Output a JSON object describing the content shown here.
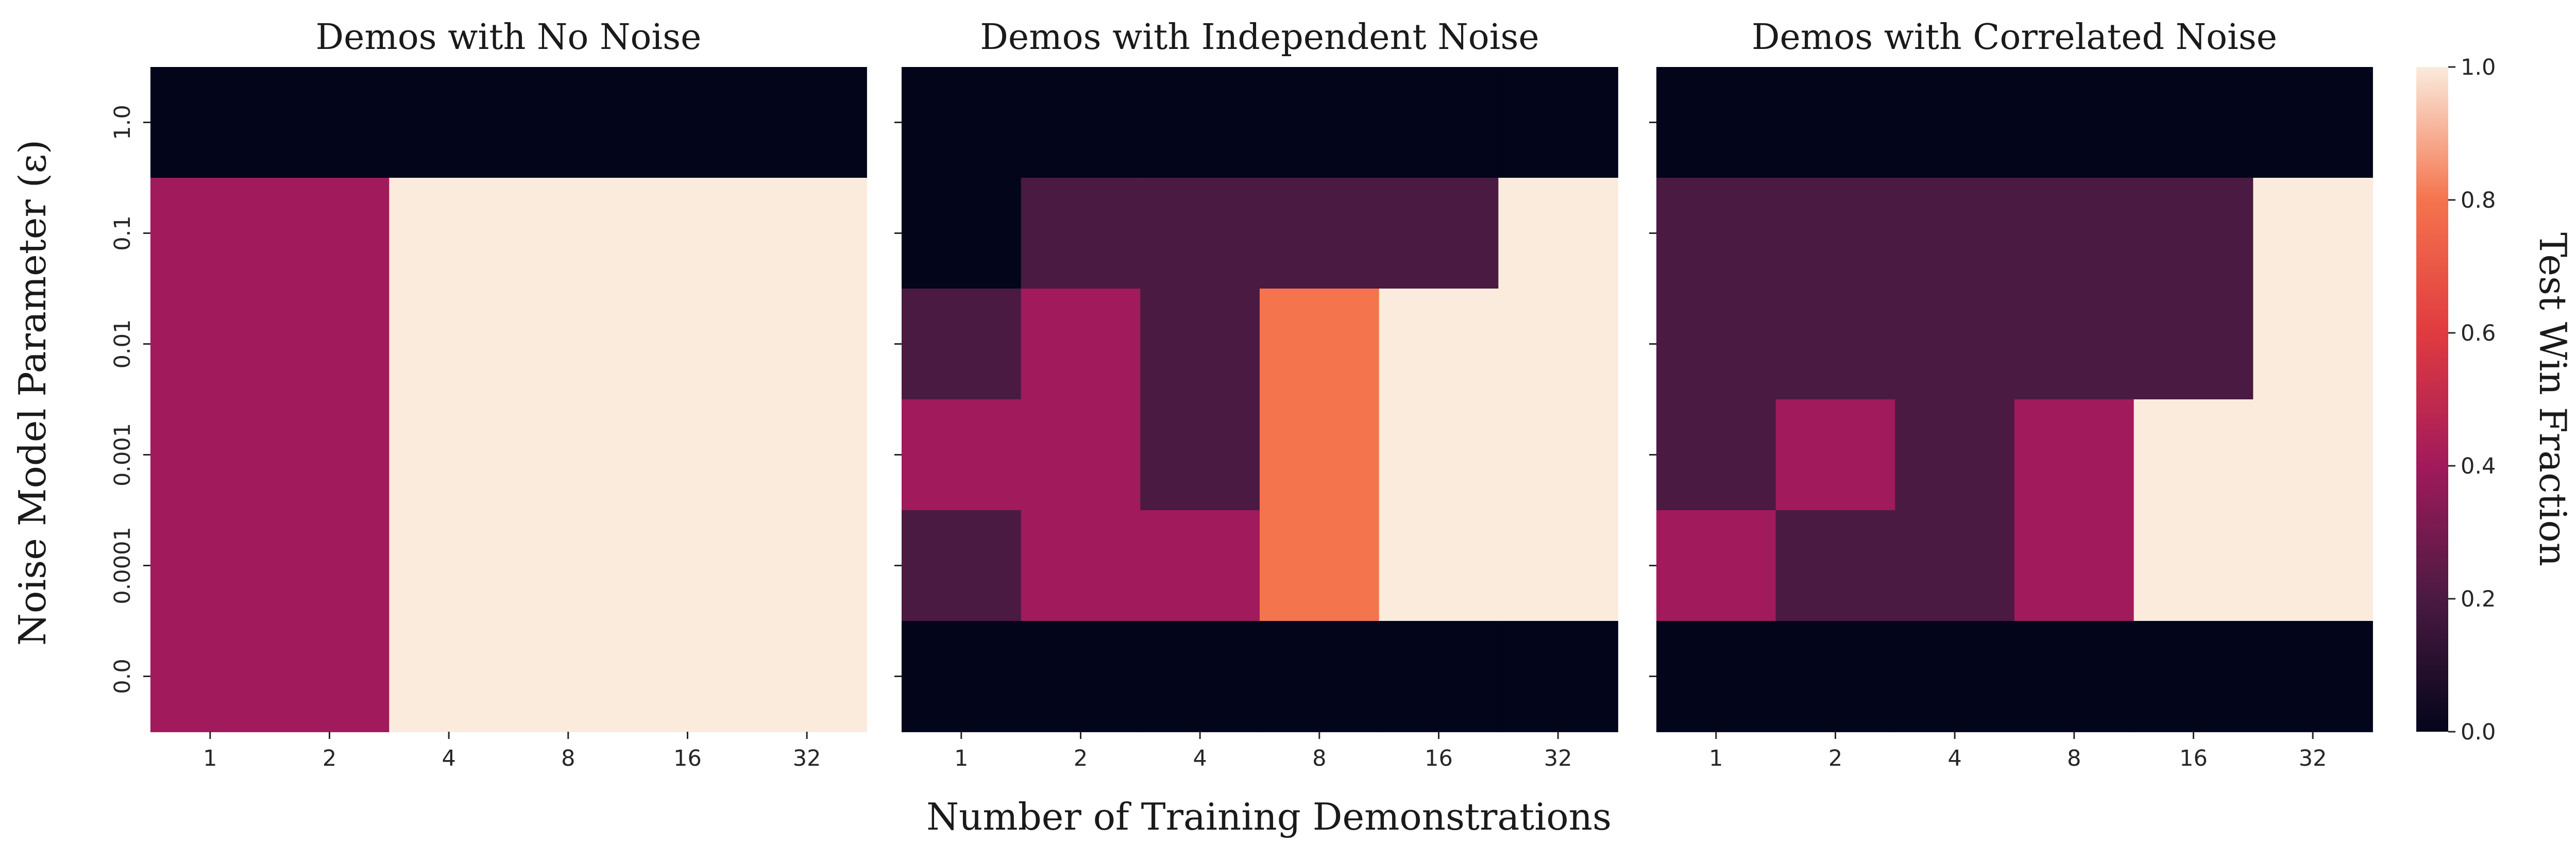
{
  "chart_data": {
    "type": "heatmap",
    "xlabel": "Number of Training Demonstrations",
    "ylabel": "Noise Model Parameter (ε)",
    "x_categories": [
      "1",
      "2",
      "4",
      "8",
      "16",
      "32"
    ],
    "y_categories": [
      "1.0",
      "0.1",
      "0.01",
      "0.001",
      "0.0001",
      "0.0"
    ],
    "colorbar": {
      "label": "Test Win Fraction",
      "range": [
        0.0,
        1.0
      ],
      "ticks": [
        "0.0",
        "0.2",
        "0.4",
        "0.6",
        "0.8",
        "1.0"
      ],
      "colormap": "rocket"
    },
    "panels": [
      {
        "title": "Demos with No Noise",
        "values": [
          [
            0.0,
            0.0,
            0.0,
            0.0,
            0.0,
            0.0
          ],
          [
            0.4,
            0.4,
            1.0,
            1.0,
            1.0,
            1.0
          ],
          [
            0.4,
            0.4,
            1.0,
            1.0,
            1.0,
            1.0
          ],
          [
            0.4,
            0.4,
            1.0,
            1.0,
            1.0,
            1.0
          ],
          [
            0.4,
            0.4,
            1.0,
            1.0,
            1.0,
            1.0
          ],
          [
            0.4,
            0.4,
            1.0,
            1.0,
            1.0,
            1.0
          ]
        ]
      },
      {
        "title": "Demos with Independent Noise",
        "values": [
          [
            0.0,
            0.0,
            0.0,
            0.0,
            0.0,
            0.0
          ],
          [
            0.0,
            0.2,
            0.2,
            0.2,
            0.2,
            1.0
          ],
          [
            0.2,
            0.4,
            0.2,
            0.8,
            1.0,
            1.0
          ],
          [
            0.4,
            0.4,
            0.2,
            0.8,
            1.0,
            1.0
          ],
          [
            0.2,
            0.4,
            0.4,
            0.8,
            1.0,
            1.0
          ],
          [
            0.0,
            0.0,
            0.0,
            0.0,
            0.0,
            0.0
          ]
        ]
      },
      {
        "title": "Demos with Correlated Noise",
        "values": [
          [
            0.0,
            0.0,
            0.0,
            0.0,
            0.0,
            0.0
          ],
          [
            0.2,
            0.2,
            0.2,
            0.2,
            0.2,
            1.0
          ],
          [
            0.2,
            0.2,
            0.2,
            0.2,
            0.2,
            1.0
          ],
          [
            0.2,
            0.4,
            0.2,
            0.4,
            1.0,
            1.0
          ],
          [
            0.4,
            0.2,
            0.2,
            0.4,
            1.0,
            1.0
          ],
          [
            0.0,
            0.0,
            0.0,
            0.0,
            0.0,
            0.0
          ]
        ]
      }
    ],
    "colors": {
      "v0.0": "#03051a",
      "v0.2": "#4a1a42",
      "v0.4": "#a11a5b",
      "v0.6": "#e03b40",
      "v0.8": "#f4744d",
      "v1.0": "#faebdd"
    }
  }
}
